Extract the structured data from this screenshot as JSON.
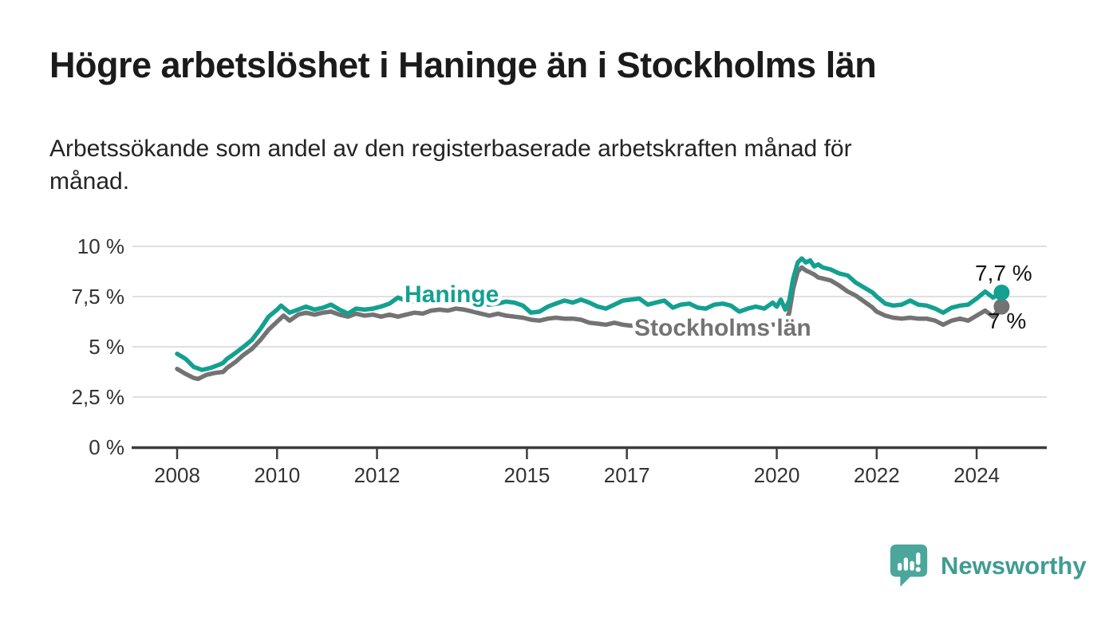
{
  "header": {
    "title": "Högre arbetslöshet i Haninge än i Stockholms län",
    "subtitle": "Arbetssökande som andel av den registerbaserade arbetskraften månad för månad."
  },
  "footer": {
    "brand": "Newsworthy",
    "logo_icon": "bar-chart-speech-bubble",
    "brand_color": "#3f9d92"
  },
  "chart_data": {
    "type": "line",
    "title": "Högre arbetslöshet i Haninge än i Stockholms län",
    "subtitle": "Arbetssökande som andel av den registerbaserade arbetskraften månad för månad.",
    "unit": "%",
    "grid": "horizontal",
    "legend": "inline-labels",
    "x_axis": {
      "ticks": [
        "2008",
        "2010",
        "2012",
        "2015",
        "2017",
        "2020",
        "2022",
        "2024"
      ],
      "range": [
        2007.8,
        2025.4
      ]
    },
    "y_axis": {
      "ticks": [
        {
          "value": 10,
          "label": "10 %"
        },
        {
          "value": 7.5,
          "label": "7,5 %"
        },
        {
          "value": 5,
          "label": "5 %"
        },
        {
          "value": 2.5,
          "label": "2,5 %"
        },
        {
          "value": 0,
          "label": "0 %"
        }
      ],
      "range": [
        0,
        10
      ]
    },
    "series": [
      {
        "name": "Stockholms län",
        "color": "#737373",
        "end_label": "7 %",
        "end_value": 7.0,
        "points": [
          [
            2008.0,
            3.9
          ],
          [
            2008.17,
            3.65
          ],
          [
            2008.33,
            3.45
          ],
          [
            2008.42,
            3.4
          ],
          [
            2008.58,
            3.6
          ],
          [
            2008.75,
            3.7
          ],
          [
            2008.92,
            3.75
          ],
          [
            2009.0,
            3.95
          ],
          [
            2009.17,
            4.25
          ],
          [
            2009.33,
            4.6
          ],
          [
            2009.5,
            4.9
          ],
          [
            2009.67,
            5.35
          ],
          [
            2009.83,
            5.85
          ],
          [
            2010.0,
            6.25
          ],
          [
            2010.13,
            6.55
          ],
          [
            2010.25,
            6.3
          ],
          [
            2010.42,
            6.6
          ],
          [
            2010.58,
            6.7
          ],
          [
            2010.75,
            6.6
          ],
          [
            2010.92,
            6.7
          ],
          [
            2011.08,
            6.75
          ],
          [
            2011.25,
            6.6
          ],
          [
            2011.42,
            6.5
          ],
          [
            2011.58,
            6.65
          ],
          [
            2011.75,
            6.55
          ],
          [
            2011.92,
            6.6
          ],
          [
            2012.08,
            6.5
          ],
          [
            2012.25,
            6.6
          ],
          [
            2012.42,
            6.5
          ],
          [
            2012.58,
            6.6
          ],
          [
            2012.75,
            6.7
          ],
          [
            2012.92,
            6.65
          ],
          [
            2013.08,
            6.8
          ],
          [
            2013.25,
            6.85
          ],
          [
            2013.42,
            6.8
          ],
          [
            2013.58,
            6.9
          ],
          [
            2013.75,
            6.85
          ],
          [
            2013.92,
            6.75
          ],
          [
            2014.08,
            6.65
          ],
          [
            2014.25,
            6.55
          ],
          [
            2014.42,
            6.65
          ],
          [
            2014.58,
            6.55
          ],
          [
            2014.75,
            6.5
          ],
          [
            2014.92,
            6.45
          ],
          [
            2015.08,
            6.35
          ],
          [
            2015.25,
            6.3
          ],
          [
            2015.42,
            6.4
          ],
          [
            2015.58,
            6.45
          ],
          [
            2015.75,
            6.4
          ],
          [
            2015.92,
            6.4
          ],
          [
            2016.08,
            6.35
          ],
          [
            2016.25,
            6.2
          ],
          [
            2016.42,
            6.15
          ],
          [
            2016.58,
            6.1
          ],
          [
            2016.75,
            6.2
          ],
          [
            2016.92,
            6.1
          ],
          [
            2017.08,
            6.05
          ],
          [
            2017.25,
            6.1
          ],
          [
            2017.42,
            6.15
          ],
          [
            2017.58,
            6.1
          ],
          [
            2017.75,
            6.05
          ],
          [
            2017.92,
            6.1
          ],
          [
            2018.08,
            6.15
          ],
          [
            2018.25,
            6.05
          ],
          [
            2018.42,
            6.0
          ],
          [
            2018.58,
            6.05
          ],
          [
            2018.75,
            6.1
          ],
          [
            2018.92,
            6.05
          ],
          [
            2019.08,
            5.95
          ],
          [
            2019.25,
            6.0
          ],
          [
            2019.42,
            6.05
          ],
          [
            2019.58,
            6.0
          ],
          [
            2019.75,
            6.05
          ],
          [
            2019.92,
            6.1
          ],
          [
            2020.08,
            6.15
          ],
          [
            2020.17,
            6.2
          ],
          [
            2020.25,
            6.7
          ],
          [
            2020.33,
            7.9
          ],
          [
            2020.42,
            8.75
          ],
          [
            2020.5,
            8.95
          ],
          [
            2020.58,
            8.8
          ],
          [
            2020.67,
            8.7
          ],
          [
            2020.75,
            8.6
          ],
          [
            2020.83,
            8.45
          ],
          [
            2020.92,
            8.4
          ],
          [
            2021.08,
            8.3
          ],
          [
            2021.25,
            8.05
          ],
          [
            2021.42,
            7.75
          ],
          [
            2021.58,
            7.55
          ],
          [
            2021.75,
            7.25
          ],
          [
            2021.92,
            6.95
          ],
          [
            2022.0,
            6.75
          ],
          [
            2022.17,
            6.55
          ],
          [
            2022.33,
            6.45
          ],
          [
            2022.5,
            6.4
          ],
          [
            2022.67,
            6.45
          ],
          [
            2022.83,
            6.4
          ],
          [
            2023.0,
            6.4
          ],
          [
            2023.17,
            6.3
          ],
          [
            2023.33,
            6.1
          ],
          [
            2023.5,
            6.3
          ],
          [
            2023.67,
            6.4
          ],
          [
            2023.83,
            6.3
          ],
          [
            2024.0,
            6.55
          ],
          [
            2024.17,
            6.8
          ],
          [
            2024.33,
            6.5
          ],
          [
            2024.5,
            7.0
          ]
        ]
      },
      {
        "name": "Haninge",
        "color": "#14a090",
        "end_label": "7,7 %",
        "end_value": 7.7,
        "points": [
          [
            2008.0,
            4.65
          ],
          [
            2008.17,
            4.4
          ],
          [
            2008.33,
            4.0
          ],
          [
            2008.5,
            3.85
          ],
          [
            2008.67,
            3.95
          ],
          [
            2008.83,
            4.1
          ],
          [
            2008.92,
            4.2
          ],
          [
            2009.0,
            4.4
          ],
          [
            2009.17,
            4.7
          ],
          [
            2009.33,
            5.0
          ],
          [
            2009.5,
            5.35
          ],
          [
            2009.67,
            5.9
          ],
          [
            2009.83,
            6.5
          ],
          [
            2010.0,
            6.85
          ],
          [
            2010.08,
            7.05
          ],
          [
            2010.25,
            6.7
          ],
          [
            2010.42,
            6.85
          ],
          [
            2010.58,
            7.0
          ],
          [
            2010.75,
            6.85
          ],
          [
            2010.92,
            6.95
          ],
          [
            2011.08,
            7.1
          ],
          [
            2011.25,
            6.85
          ],
          [
            2011.42,
            6.65
          ],
          [
            2011.58,
            6.9
          ],
          [
            2011.75,
            6.85
          ],
          [
            2011.92,
            6.9
          ],
          [
            2012.08,
            7.0
          ],
          [
            2012.25,
            7.15
          ],
          [
            2012.42,
            7.45
          ],
          [
            2012.58,
            7.3
          ],
          [
            2012.75,
            7.25
          ],
          [
            2012.92,
            7.35
          ],
          [
            2013.08,
            7.3
          ],
          [
            2013.25,
            7.4
          ],
          [
            2013.42,
            7.3
          ],
          [
            2013.58,
            7.35
          ],
          [
            2013.75,
            7.25
          ],
          [
            2013.92,
            7.2
          ],
          [
            2014.08,
            7.15
          ],
          [
            2014.25,
            7.1
          ],
          [
            2014.42,
            7.15
          ],
          [
            2014.58,
            7.25
          ],
          [
            2014.75,
            7.2
          ],
          [
            2014.92,
            7.05
          ],
          [
            2015.08,
            6.7
          ],
          [
            2015.25,
            6.75
          ],
          [
            2015.42,
            7.0
          ],
          [
            2015.58,
            7.15
          ],
          [
            2015.75,
            7.3
          ],
          [
            2015.92,
            7.2
          ],
          [
            2016.08,
            7.35
          ],
          [
            2016.25,
            7.2
          ],
          [
            2016.42,
            7.0
          ],
          [
            2016.58,
            6.9
          ],
          [
            2016.75,
            7.1
          ],
          [
            2016.92,
            7.3
          ],
          [
            2017.08,
            7.35
          ],
          [
            2017.25,
            7.4
          ],
          [
            2017.42,
            7.1
          ],
          [
            2017.58,
            7.2
          ],
          [
            2017.75,
            7.3
          ],
          [
            2017.92,
            6.95
          ],
          [
            2018.08,
            7.1
          ],
          [
            2018.25,
            7.15
          ],
          [
            2018.42,
            6.95
          ],
          [
            2018.58,
            6.9
          ],
          [
            2018.75,
            7.1
          ],
          [
            2018.92,
            7.15
          ],
          [
            2019.08,
            7.05
          ],
          [
            2019.25,
            6.75
          ],
          [
            2019.42,
            6.9
          ],
          [
            2019.58,
            7.0
          ],
          [
            2019.75,
            6.9
          ],
          [
            2019.92,
            7.2
          ],
          [
            2020.0,
            7.0
          ],
          [
            2020.08,
            7.35
          ],
          [
            2020.17,
            6.85
          ],
          [
            2020.25,
            7.3
          ],
          [
            2020.33,
            8.4
          ],
          [
            2020.42,
            9.2
          ],
          [
            2020.5,
            9.4
          ],
          [
            2020.58,
            9.2
          ],
          [
            2020.67,
            9.3
          ],
          [
            2020.75,
            9.0
          ],
          [
            2020.83,
            9.1
          ],
          [
            2020.92,
            8.95
          ],
          [
            2021.08,
            8.85
          ],
          [
            2021.25,
            8.65
          ],
          [
            2021.42,
            8.55
          ],
          [
            2021.58,
            8.2
          ],
          [
            2021.75,
            7.95
          ],
          [
            2021.92,
            7.7
          ],
          [
            2022.0,
            7.5
          ],
          [
            2022.17,
            7.15
          ],
          [
            2022.33,
            7.05
          ],
          [
            2022.5,
            7.1
          ],
          [
            2022.67,
            7.3
          ],
          [
            2022.83,
            7.1
          ],
          [
            2023.0,
            7.05
          ],
          [
            2023.17,
            6.9
          ],
          [
            2023.33,
            6.7
          ],
          [
            2023.5,
            6.95
          ],
          [
            2023.67,
            7.05
          ],
          [
            2023.83,
            7.1
          ],
          [
            2024.0,
            7.4
          ],
          [
            2024.17,
            7.75
          ],
          [
            2024.33,
            7.45
          ],
          [
            2024.5,
            7.7
          ]
        ]
      }
    ]
  }
}
